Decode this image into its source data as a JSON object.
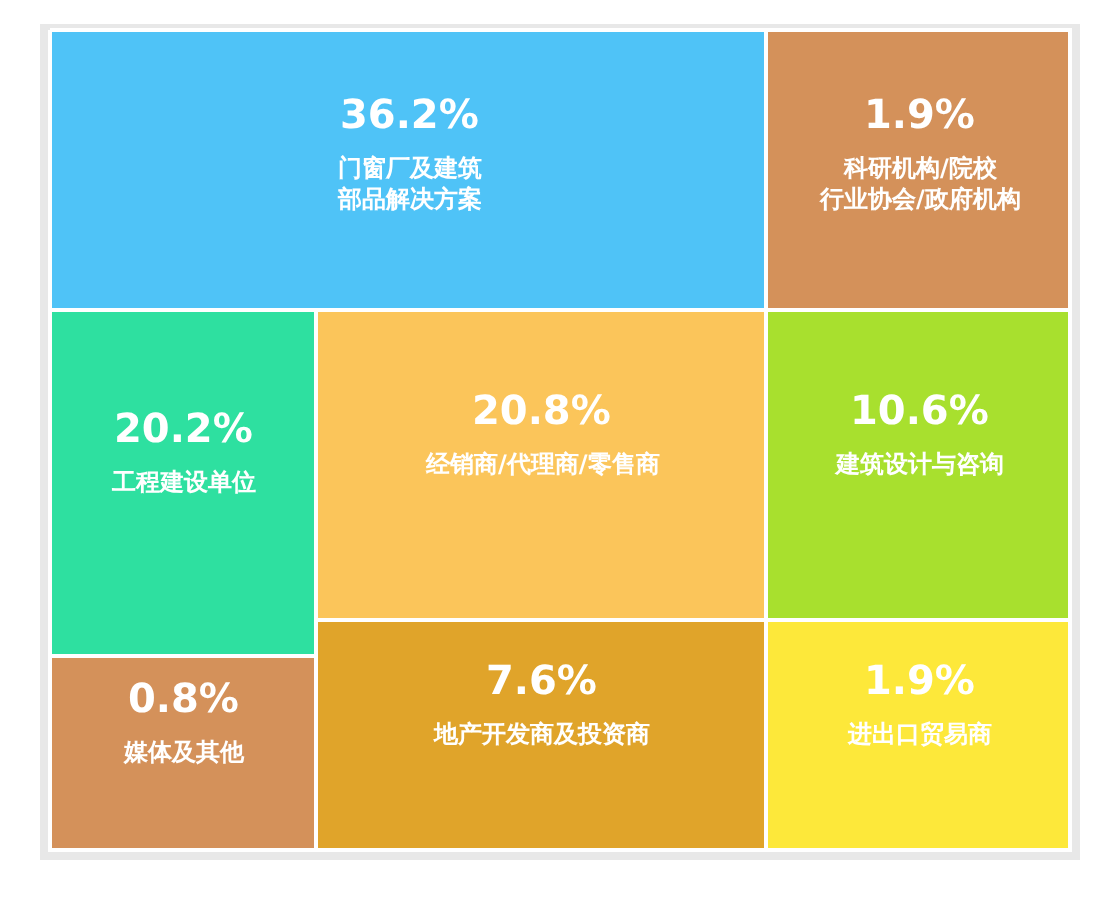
{
  "chart_data": {
    "type": "other",
    "categories": [
      "门窗厂及建筑部品解决方案",
      "科研机构/院校行业协会/政府机构",
      "工程建设单位",
      "经销商/代理商/零售商",
      "建筑设计与咨询",
      "媒体及其他",
      "地产开发商及投资商",
      "进出口贸易商"
    ],
    "values": [
      36.2,
      1.9,
      20.2,
      20.8,
      10.6,
      0.8,
      7.6,
      1.9
    ],
    "value_labels": [
      "36.2%",
      "1.9%",
      "20.2%",
      "20.8%",
      "10.6%",
      "0.8%",
      "7.6%",
      "1.9%"
    ],
    "colors": [
      "#4fc3f7",
      "#d4915a",
      "#2ee0a0",
      "#fbc55a",
      "#a8e02e",
      "#d4915a",
      "#e0a42a",
      "#fde83a"
    ]
  }
}
